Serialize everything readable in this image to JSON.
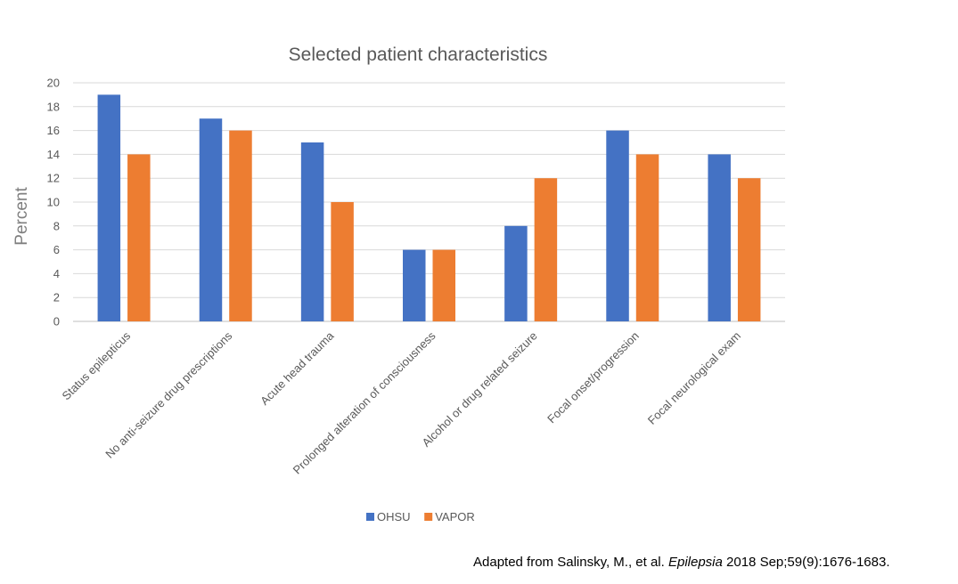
{
  "chart_data": {
    "type": "bar",
    "title": "Selected patient characteristics",
    "ylabel": "Percent",
    "xlabel": "",
    "ylim": [
      0,
      20
    ],
    "ytick_step": 2,
    "grid": true,
    "legend_position": "bottom",
    "categories": [
      "Status epilepticus",
      "No anti-seizure drug prescriptions",
      "Acute head trauma",
      "Prolonged alteration of consciousness",
      "Alcohol or drug related seizure",
      "Focal onset/progression",
      "Focal neurological exam"
    ],
    "series": [
      {
        "name": "OHSU",
        "color": "#4472c4",
        "values": [
          19,
          17,
          15,
          6,
          8,
          16,
          14
        ]
      },
      {
        "name": "VAPOR",
        "color": "#ed7d31",
        "values": [
          14,
          16,
          10,
          6,
          12,
          14,
          12
        ]
      }
    ]
  },
  "caption": {
    "prefix": "Adapted from Salinsky, M., et al. ",
    "journal": "Epilepsia",
    "suffix": " 2018 Sep;59(9):1676-1683."
  }
}
